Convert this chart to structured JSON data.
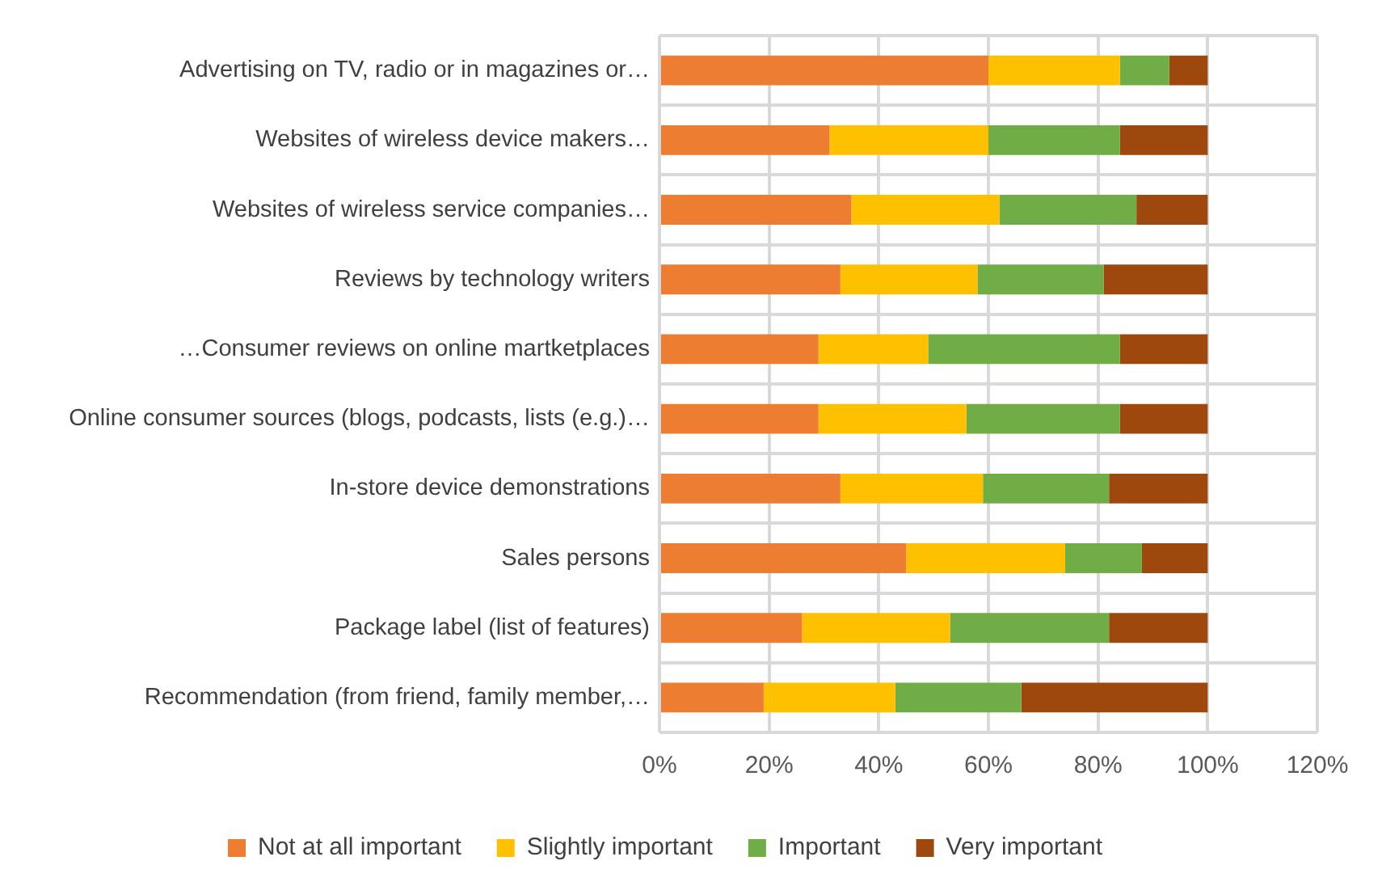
{
  "chart_data": {
    "type": "bar",
    "orientation": "horizontal",
    "stacked": true,
    "categories": [
      "Advertising on TV, radio or in magazines or…",
      "Websites of wireless device makers…",
      "Websites of wireless service companies…",
      "Reviews by technology writers",
      "…Consumer reviews on online martketplaces",
      "Online consumer sources (blogs, podcasts, lists (e.g.)…",
      "In-store device demonstrations",
      "Sales persons",
      "Package label (list of features)",
      "Recommendation (from friend, family member,…"
    ],
    "series": [
      {
        "name": "Not at all important",
        "color": "#ed7d31",
        "values": [
          60,
          31,
          35,
          33,
          29,
          29,
          33,
          45,
          26,
          19
        ]
      },
      {
        "name": "Slightly important",
        "color": "#ffc000",
        "values": [
          24,
          29,
          27,
          25,
          20,
          27,
          26,
          29,
          27,
          24
        ]
      },
      {
        "name": "Important",
        "color": "#70ad47",
        "values": [
          9,
          24,
          25,
          23,
          35,
          28,
          23,
          14,
          29,
          23
        ]
      },
      {
        "name": "Very important",
        "color": "#9e480e",
        "values": [
          7,
          16,
          13,
          19,
          16,
          16,
          18,
          12,
          18,
          34
        ]
      }
    ],
    "xlim": [
      0,
      120
    ],
    "xticks": [
      {
        "value": 0,
        "label": "0%"
      },
      {
        "value": 20,
        "label": "20%"
      },
      {
        "value": 40,
        "label": "40%"
      },
      {
        "value": 60,
        "label": "60%"
      },
      {
        "value": 80,
        "label": "80%"
      },
      {
        "value": 100,
        "label": "100%"
      },
      {
        "value": 120,
        "label": "120%"
      }
    ],
    "grid": true,
    "legend": "bottom"
  }
}
